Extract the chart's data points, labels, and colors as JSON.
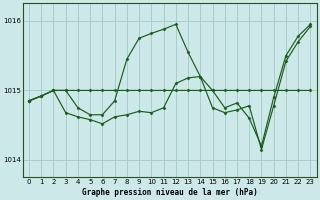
{
  "xlabel": "Graphe pression niveau de la mer (hPa)",
  "background_color": "#cce8e8",
  "grid_color": "#aacccc",
  "line_color": "#1a5c1a",
  "ylim": [
    1013.75,
    1016.25
  ],
  "xlim": [
    -0.5,
    23.5
  ],
  "yticks": [
    1014,
    1015,
    1016
  ],
  "xticks": [
    0,
    1,
    2,
    3,
    4,
    5,
    6,
    7,
    8,
    9,
    10,
    11,
    12,
    13,
    14,
    15,
    16,
    17,
    18,
    19,
    20,
    21,
    22,
    23
  ],
  "series1_x": [
    0,
    1,
    2,
    3,
    4,
    5,
    6,
    7,
    8,
    9,
    10,
    11,
    12,
    13,
    14,
    15,
    16,
    17,
    18,
    19,
    20,
    21,
    22,
    23
  ],
  "series1_y": [
    1014.85,
    1014.92,
    1015.0,
    1015.0,
    1015.0,
    1015.0,
    1015.0,
    1015.0,
    1015.0,
    1015.0,
    1015.0,
    1015.0,
    1015.0,
    1015.0,
    1015.0,
    1015.0,
    1015.0,
    1015.0,
    1015.0,
    1015.0,
    1015.0,
    1015.0,
    1015.0,
    1015.0
  ],
  "series2_x": [
    0,
    1,
    2,
    3,
    4,
    5,
    6,
    7,
    8,
    9,
    10,
    11,
    12,
    13,
    14,
    15,
    16,
    17,
    18,
    19,
    20,
    21,
    22,
    23
  ],
  "series2_y": [
    1014.85,
    1014.92,
    1015.0,
    1015.0,
    1014.75,
    1014.65,
    1014.65,
    1014.85,
    1015.45,
    1015.75,
    1015.82,
    1015.88,
    1015.95,
    1015.55,
    1015.2,
    1015.0,
    1014.75,
    1014.82,
    1014.6,
    1014.2,
    1014.9,
    1015.5,
    1015.78,
    1015.95
  ],
  "series3_x": [
    0,
    1,
    2,
    3,
    4,
    5,
    6,
    7,
    8,
    9,
    10,
    11,
    12,
    13,
    14,
    15,
    16,
    17,
    18,
    19,
    20,
    21,
    22,
    23
  ],
  "series3_y": [
    1014.85,
    1014.92,
    1015.0,
    1014.68,
    1014.62,
    1014.58,
    1014.52,
    1014.62,
    1014.65,
    1014.7,
    1014.68,
    1014.75,
    1015.1,
    1015.18,
    1015.2,
    1014.75,
    1014.68,
    1014.72,
    1014.78,
    1014.15,
    1014.78,
    1015.42,
    1015.7,
    1015.92
  ]
}
